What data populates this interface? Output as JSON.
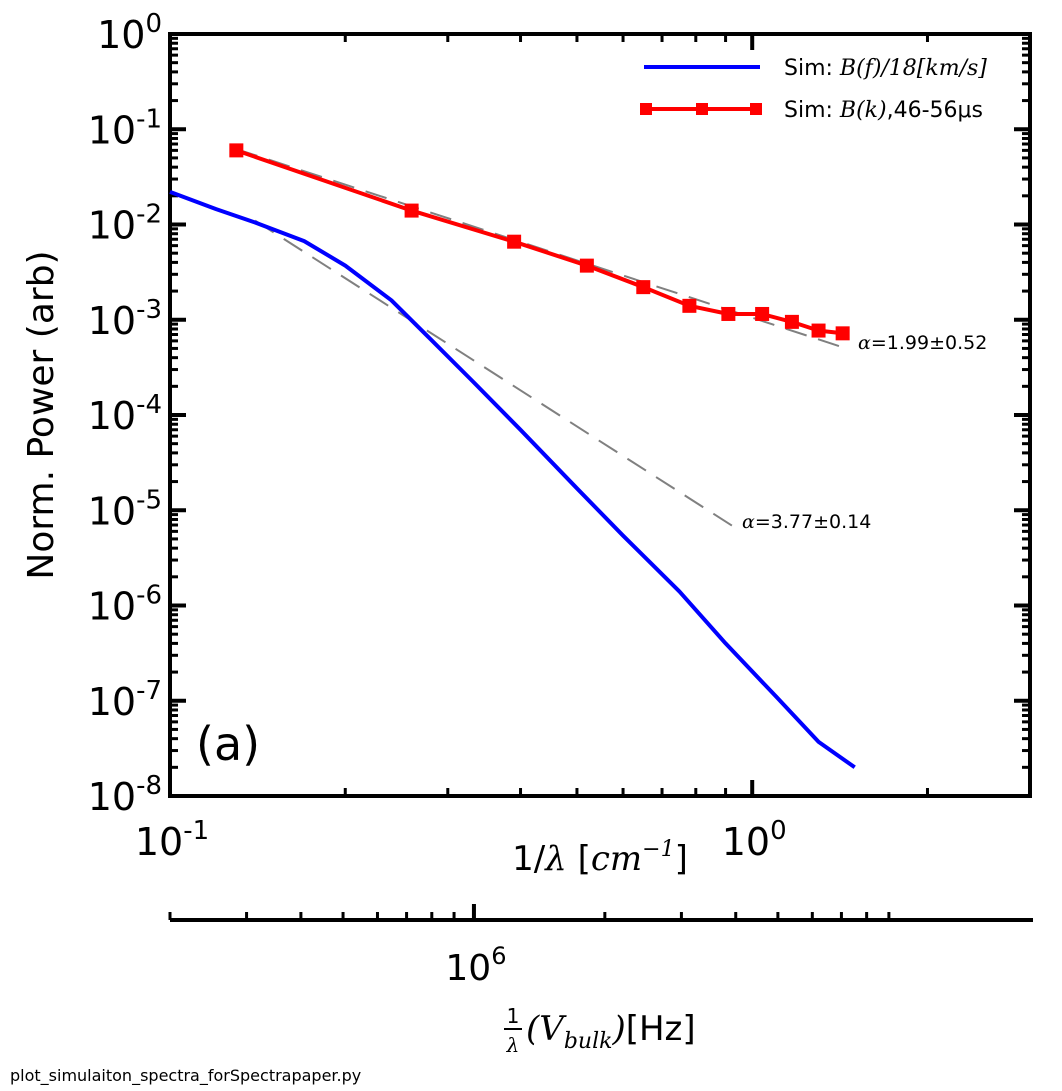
{
  "chart_data": {
    "type": "line",
    "panel_label": "(a)",
    "ylabel": "Norm. Power (arb)",
    "xlabel": {
      "prefix": "1/",
      "sym": "λ",
      "open": " [",
      "unit": "cm",
      "exp": "−1",
      "close": "]"
    },
    "xscale": "log",
    "yscale": "log",
    "xlim": [
      0.1,
      3.0
    ],
    "ylim": [
      1e-08,
      1.0
    ],
    "x_ticks": [
      {
        "value": 0.1,
        "base": "10",
        "exp": "-1"
      },
      {
        "value": 1.0,
        "base": "10",
        "exp": "0"
      }
    ],
    "y_ticks": [
      {
        "value": 1,
        "base": "10",
        "exp": "0"
      },
      {
        "value": 0.1,
        "base": "10",
        "exp": "-1"
      },
      {
        "value": 0.01,
        "base": "10",
        "exp": "-2"
      },
      {
        "value": 0.001,
        "base": "10",
        "exp": "-3"
      },
      {
        "value": 0.0001,
        "base": "10",
        "exp": "-4"
      },
      {
        "value": 1e-05,
        "base": "10",
        "exp": "-5"
      },
      {
        "value": 1e-06,
        "base": "10",
        "exp": "-6"
      },
      {
        "value": 1e-07,
        "base": "10",
        "exp": "-7"
      },
      {
        "value": 1e-08,
        "base": "10",
        "exp": "-8"
      }
    ],
    "secondary_x_axis": {
      "scale": "log",
      "xlim": [
        200000.0,
        19000000.0
      ],
      "tick": {
        "value": 1000000.0,
        "base": "10",
        "exp": "6"
      },
      "label": {
        "frac_num": "1",
        "frac_den": "λ",
        "open": "(",
        "sym": "V",
        "sub": "bulk",
        "close": ")",
        "unit": "[Hz]"
      }
    },
    "series": [
      {
        "name": "Sim: B(f)/18[km/s]",
        "legend": {
          "prefix": "Sim: ",
          "math": "B(f)/18[km/s]",
          "suffix": ""
        },
        "color": "#0000ff",
        "marker": "none",
        "x": [
          0.1,
          0.12,
          0.14,
          0.17,
          0.2,
          0.24,
          0.28,
          0.33,
          0.4,
          0.5,
          0.6,
          0.75,
          0.9,
          1.1,
          1.3,
          1.5
        ],
        "y": [
          0.022,
          0.0145,
          0.0105,
          0.0067,
          0.0037,
          0.0016,
          0.00063,
          0.00023,
          7e-05,
          1.7e-05,
          5.4e-06,
          1.4e-06,
          4e-07,
          1.1e-07,
          3.7e-08,
          2e-08
        ]
      },
      {
        "name": "Sim: B(k),46-56μs",
        "legend": {
          "prefix": "Sim: ",
          "math": "B(k)",
          "suffix": ",46-56μs"
        },
        "color": "#ff0000",
        "marker": "square",
        "x": [
          0.13,
          0.26,
          0.39,
          0.52,
          0.65,
          0.78,
          0.91,
          1.04,
          1.17,
          1.3,
          1.43
        ],
        "y": [
          0.06,
          0.014,
          0.0066,
          0.0037,
          0.0022,
          0.0014,
          0.00115,
          0.00115,
          0.00095,
          0.00077,
          0.00072
        ]
      }
    ],
    "fits": [
      {
        "x": [
          0.13,
          1.45
        ],
        "y": [
          0.062,
          0.0005
        ],
        "color": "#808080",
        "dash": "long",
        "annotation": {
          "alpha_sym": "α",
          "eq": "=",
          "value": "1.99",
          "pm": "±",
          "err": "0.52",
          "color": "#ff0000"
        }
      },
      {
        "x": [
          0.14,
          0.93
        ],
        "y": [
          0.011,
          6.7e-06
        ],
        "color": "#808080",
        "dash": "long",
        "annotation": {
          "alpha_sym": "α",
          "eq": "=",
          "value": "3.77",
          "pm": "±",
          "err": "0.14",
          "color": "#0000ff"
        }
      }
    ]
  },
  "footer": {
    "script_name": "plot_simulaiton_spectra_forSpectrapaper.py"
  }
}
